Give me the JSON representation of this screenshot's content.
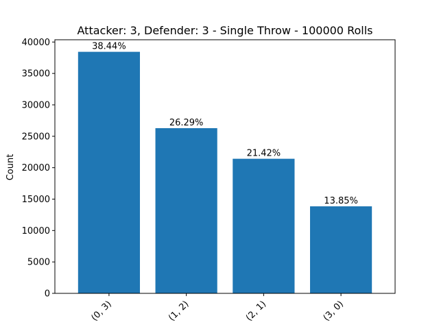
{
  "chart_data": {
    "type": "bar",
    "title": "Attacker: 3, Defender: 3 - Single Throw - 100000 Rolls",
    "xlabel": "",
    "ylabel": "Count",
    "categories": [
      "(0, 3)",
      "(1, 2)",
      "(2, 1)",
      "(3, 0)"
    ],
    "values": [
      38440,
      26290,
      21420,
      13850
    ],
    "data_labels": [
      "38.44%",
      "26.29%",
      "21.42%",
      "13.85%"
    ],
    "ylim": [
      0,
      40360
    ],
    "yticks": [
      0,
      5000,
      10000,
      15000,
      20000,
      25000,
      30000,
      35000,
      40000
    ],
    "ytick_labels": [
      "0",
      "5000",
      "10000",
      "15000",
      "20000",
      "25000",
      "30000",
      "35000",
      "40000"
    ],
    "grid": false,
    "bar_color": "#1f77b4"
  }
}
